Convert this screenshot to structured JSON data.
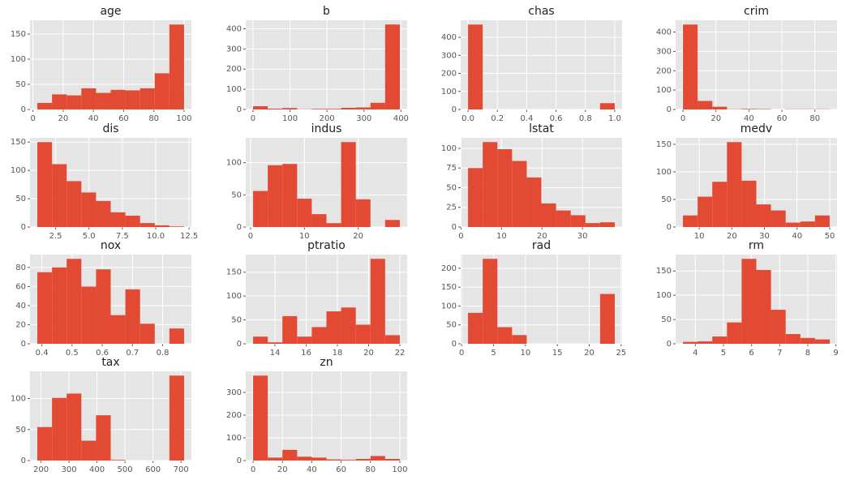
{
  "chart_data": [
    {
      "type": "histogram",
      "title": "age",
      "color": "#e24a33",
      "grid": true,
      "bins": [
        2.9,
        12.61,
        22.32,
        32.03,
        41.74,
        51.45,
        61.16,
        70.87,
        80.58,
        90.29,
        100
      ],
      "values": [
        13,
        30,
        28,
        42,
        33,
        39,
        38,
        42,
        72,
        169
      ],
      "xlim": [
        -1.955,
        104.855
      ],
      "xticks": [
        0,
        20,
        40,
        60,
        80,
        100
      ],
      "ylim": [
        0,
        177.45
      ],
      "yticks": [
        0,
        50,
        100,
        150
      ]
    },
    {
      "type": "histogram",
      "title": "b",
      "color": "#e24a33",
      "grid": true,
      "bins": [
        0.32,
        39.98,
        79.64,
        119.29,
        158.95,
        198.61,
        238.27,
        277.93,
        317.58,
        357.24,
        396.9
      ],
      "values": [
        16,
        4,
        7,
        1,
        3,
        3,
        8,
        10,
        33,
        421
      ],
      "xlim": [
        -19.5,
        416.7
      ],
      "xticks": [
        0,
        100,
        200,
        300,
        400
      ],
      "ylim": [
        0,
        442
      ],
      "yticks": [
        0,
        100,
        200,
        300,
        400
      ]
    },
    {
      "type": "histogram",
      "title": "chas",
      "color": "#e24a33",
      "grid": true,
      "bins": [
        0,
        0.1,
        0.2,
        0.3,
        0.4,
        0.5,
        0.6,
        0.7,
        0.8,
        0.9,
        1
      ],
      "values": [
        471,
        0,
        0,
        0,
        0,
        0,
        0,
        0,
        0,
        35
      ],
      "xlim": [
        -0.05,
        1.05
      ],
      "xticks": [
        {
          "value": 0,
          "label": "0.0"
        },
        0.2,
        0.4,
        0.6,
        0.8,
        {
          "value": 1,
          "label": "1.0"
        }
      ],
      "ylim": [
        0,
        494.55
      ],
      "yticks": [
        0,
        100,
        200,
        300,
        400
      ]
    },
    {
      "type": "histogram",
      "title": "crim",
      "color": "#e24a33",
      "grid": true,
      "bins": [
        0.006,
        8.903,
        17.8,
        26.697,
        35.594,
        44.491,
        53.388,
        62.285,
        71.182,
        80.079,
        88.976
      ],
      "values": [
        439,
        44,
        14,
        1,
        3,
        2,
        0,
        1,
        1,
        1
      ],
      "xlim": [
        -4.44,
        93.42
      ],
      "xticks": [
        0,
        20,
        40,
        60,
        80
      ],
      "ylim": [
        0,
        461
      ],
      "yticks": [
        0,
        100,
        200,
        300,
        400
      ]
    },
    {
      "type": "histogram",
      "title": "dis",
      "color": "#e24a33",
      "grid": true,
      "bins": [
        1.1296,
        2.2293,
        3.329,
        4.4287,
        5.5284,
        6.628,
        7.7277,
        8.8274,
        9.9271,
        11.0268,
        12.1265
      ],
      "values": [
        150,
        111,
        81,
        61,
        46,
        26,
        20,
        7,
        3,
        1
      ],
      "xlim": [
        0.58,
        12.676
      ],
      "xticks": [
        2.5,
        {
          "value": 5,
          "label": "5.0"
        },
        7.5,
        {
          "value": 10,
          "label": "10.0"
        },
        12.5
      ],
      "ylim": [
        0,
        157.5
      ],
      "yticks": [
        0,
        50,
        100,
        150
      ]
    },
    {
      "type": "histogram",
      "title": "indus",
      "color": "#e24a33",
      "grid": true,
      "bins": [
        0.46,
        3.188,
        5.916,
        8.644,
        11.372,
        14.1,
        16.828,
        19.556,
        22.284,
        25.012,
        27.74
      ],
      "values": [
        56,
        96,
        98,
        44,
        20,
        6,
        132,
        43,
        0,
        11
      ],
      "xlim": [
        -0.904,
        29.104
      ],
      "xticks": [
        0,
        10,
        20
      ],
      "ylim": [
        0,
        138.6
      ],
      "yticks": [
        0,
        50,
        100
      ]
    },
    {
      "type": "histogram",
      "title": "lstat",
      "color": "#e24a33",
      "grid": true,
      "bins": [
        1.73,
        5.354,
        8.978,
        12.602,
        16.226,
        19.85,
        23.474,
        27.098,
        30.722,
        34.346,
        37.97
      ],
      "values": [
        75,
        108,
        99,
        84,
        63,
        30,
        21,
        15,
        5,
        6
      ],
      "xlim": [
        -0.082,
        39.782
      ],
      "xticks": [
        0,
        10,
        20,
        30
      ],
      "ylim": [
        0,
        113.4
      ],
      "yticks": [
        0,
        25,
        50,
        75,
        100
      ]
    },
    {
      "type": "histogram",
      "title": "medv",
      "color": "#e24a33",
      "grid": true,
      "bins": [
        5,
        9.5,
        14,
        18.5,
        23,
        27.5,
        32,
        36.5,
        41,
        45.5,
        50
      ],
      "values": [
        21,
        55,
        82,
        154,
        84,
        41,
        30,
        8,
        10,
        21
      ],
      "xlim": [
        2.75,
        52.25
      ],
      "xticks": [
        10,
        20,
        30,
        40,
        50
      ],
      "ylim": [
        0,
        161.7
      ],
      "yticks": [
        0,
        50,
        100,
        150
      ]
    },
    {
      "type": "histogram",
      "title": "nox",
      "color": "#e24a33",
      "grid": true,
      "bins": [
        0.385,
        0.4336,
        0.4822,
        0.5308,
        0.5794,
        0.628,
        0.6766,
        0.7252,
        0.7738,
        0.8224,
        0.871
      ],
      "values": [
        75,
        80,
        89,
        60,
        78,
        30,
        57,
        21,
        0,
        16
      ],
      "xlim": [
        0.3607,
        0.8953
      ],
      "xticks": [
        0.4,
        0.5,
        0.6,
        0.7,
        0.8
      ],
      "ylim": [
        0,
        93.45
      ],
      "yticks": [
        0,
        20,
        40,
        60,
        80
      ]
    },
    {
      "type": "histogram",
      "title": "ptratio",
      "color": "#e24a33",
      "grid": true,
      "bins": [
        12.6,
        13.54,
        14.48,
        15.42,
        16.36,
        17.3,
        18.24,
        19.18,
        20.12,
        21.06,
        22
      ],
      "values": [
        15,
        3,
        58,
        15,
        35,
        68,
        76,
        40,
        178,
        18
      ],
      "xlim": [
        12.13,
        22.47
      ],
      "xticks": [
        14,
        16,
        18,
        20,
        22
      ],
      "ylim": [
        0,
        186.9
      ],
      "yticks": [
        0,
        50,
        100,
        150
      ]
    },
    {
      "type": "histogram",
      "title": "rad",
      "color": "#e24a33",
      "grid": true,
      "bins": [
        1,
        3.3,
        5.6,
        7.9,
        10.2,
        12.5,
        14.8,
        17.1,
        19.4,
        21.7,
        24
      ],
      "values": [
        82,
        225,
        44,
        23,
        0,
        0,
        0,
        0,
        0,
        132
      ],
      "xlim": [
        -0.15,
        25.15
      ],
      "xticks": [
        0,
        5,
        10,
        15,
        20,
        25
      ],
      "ylim": [
        0,
        236.25
      ],
      "yticks": [
        0,
        50,
        100,
        150,
        200
      ]
    },
    {
      "type": "histogram",
      "title": "rm",
      "color": "#e24a33",
      "grid": true,
      "bins": [
        3.561,
        4.0829,
        4.6048,
        5.1267,
        5.6486,
        6.1705,
        6.6924,
        7.2143,
        7.7362,
        8.2581,
        8.78
      ],
      "values": [
        4,
        5,
        15,
        44,
        175,
        152,
        70,
        20,
        12,
        9
      ],
      "xlim": [
        3.3,
        9.041
      ],
      "xticks": [
        4,
        5,
        6,
        7,
        8,
        9
      ],
      "ylim": [
        0,
        183.75
      ],
      "yticks": [
        0,
        50,
        100,
        150
      ]
    },
    {
      "type": "histogram",
      "title": "tax",
      "color": "#e24a33",
      "grid": true,
      "bins": [
        187,
        239.4,
        291.8,
        344.2,
        396.6,
        449,
        501.4,
        553.8,
        606.2,
        658.6,
        711
      ],
      "values": [
        54,
        101,
        108,
        32,
        73,
        1,
        0,
        0,
        0,
        137
      ],
      "xlim": [
        160.8,
        737.2
      ],
      "xticks": [
        200,
        300,
        400,
        500,
        600,
        700
      ],
      "ylim": [
        0,
        143.85
      ],
      "yticks": [
        0,
        50,
        100
      ]
    },
    {
      "type": "histogram",
      "title": "zn",
      "color": "#e24a33",
      "grid": true,
      "bins": [
        0,
        10,
        20,
        30,
        40,
        50,
        60,
        70,
        80,
        90,
        100
      ],
      "values": [
        374,
        13,
        47,
        17,
        13,
        5,
        3,
        7,
        20,
        7
      ],
      "xlim": [
        -5,
        105
      ],
      "xticks": [
        0,
        20,
        40,
        60,
        80,
        100
      ],
      "ylim": [
        0,
        392.7
      ],
      "yticks": [
        0,
        100,
        200,
        300
      ]
    }
  ]
}
